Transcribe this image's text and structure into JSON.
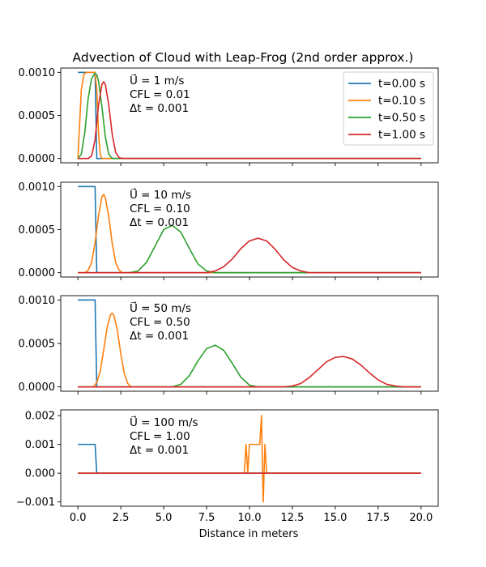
{
  "chart_data": {
    "type": "line",
    "title": "Advection of Cloud with Leap-Frog (2nd order approx.)",
    "xlabel": "Distance in meters",
    "xlim": [
      -1,
      21
    ],
    "x_ticks": [
      "0.0",
      "2.5",
      "5.0",
      "7.5",
      "10.0",
      "12.5",
      "15.0",
      "17.5",
      "20.0"
    ],
    "legend": {
      "position": "top-right",
      "entries": [
        {
          "label": "t=0.00 s",
          "color": "#1f77b4"
        },
        {
          "label": "t=0.10 s",
          "color": "#ff7f0e"
        },
        {
          "label": "t=0.50 s",
          "color": "#2ca02c"
        },
        {
          "label": "t=1.00 s",
          "color": "#d62728"
        }
      ]
    },
    "subplots": [
      {
        "annotation": [
          "U⃗ = 1 m/s",
          "CFL = 0.01",
          "Δt = 0.001"
        ],
        "ylim": [
          -5e-05,
          0.00105
        ],
        "y_ticks": [
          "0.0000",
          "0.0005",
          "0.0010"
        ],
        "series": [
          {
            "name": "t=0.00 s",
            "color": "#1f77b4",
            "x": [
              0,
              1,
              1.05,
              1.1,
              20
            ],
            "y": [
              0.001,
              0.001,
              0.0005,
              0,
              0
            ]
          },
          {
            "name": "t=0.10 s",
            "color": "#ff7f0e",
            "x": [
              0,
              0.1,
              0.2,
              0.35,
              0.5,
              1.0,
              1.1,
              1.2,
              1.3,
              1.4,
              20
            ],
            "y": [
              0,
              0.0004,
              0.0008,
              0.00098,
              0.001,
              0.001,
              0.0008,
              0.0003,
              5e-05,
              0,
              0
            ]
          },
          {
            "name": "t=0.50 s",
            "color": "#2ca02c",
            "x": [
              0,
              0.2,
              0.4,
              0.6,
              0.8,
              1.0,
              1.1,
              1.2,
              1.4,
              1.6,
              1.8,
              2.0,
              2.2,
              20
            ],
            "y": [
              0,
              5e-05,
              0.0003,
              0.0007,
              0.00093,
              0.00099,
              0.00097,
              0.0009,
              0.0006,
              0.00025,
              5e-05,
              0,
              0,
              0
            ]
          },
          {
            "name": "t=1.00 s",
            "color": "#d62728",
            "x": [
              0,
              0.6,
              0.8,
              1.0,
              1.2,
              1.4,
              1.5,
              1.6,
              1.8,
              2.0,
              2.2,
              2.4,
              2.6,
              20
            ],
            "y": [
              0,
              0,
              3e-05,
              0.00022,
              0.00062,
              0.00086,
              0.00089,
              0.00086,
              0.00062,
              0.00028,
              7e-05,
              1e-05,
              0,
              0
            ]
          }
        ]
      },
      {
        "annotation": [
          "U⃗ = 10 m/s",
          "CFL = 0.10",
          "Δt = 0.001"
        ],
        "ylim": [
          -5e-05,
          0.00105
        ],
        "y_ticks": [
          "0.0000",
          "0.0005",
          "0.0010"
        ],
        "series": [
          {
            "name": "t=0.00 s",
            "color": "#1f77b4",
            "x": [
              0,
              1,
              1.05,
              1.1,
              20
            ],
            "y": [
              0.001,
              0.001,
              0.0005,
              0,
              0
            ]
          },
          {
            "name": "t=0.10 s",
            "color": "#ff7f0e",
            "x": [
              0,
              0.4,
              0.6,
              0.8,
              1.0,
              1.2,
              1.4,
              1.5,
              1.6,
              1.8,
              2.0,
              2.2,
              2.4,
              2.6,
              20
            ],
            "y": [
              0,
              0,
              3e-05,
              0.00012,
              0.00035,
              0.00066,
              0.00088,
              0.00091,
              0.00087,
              0.00065,
              0.00034,
              0.00012,
              3e-05,
              0,
              0
            ]
          },
          {
            "name": "t=0.50 s",
            "color": "#2ca02c",
            "x": [
              0,
              3.0,
              3.5,
              4.0,
              4.5,
              5.0,
              5.5,
              6.0,
              6.5,
              7.0,
              7.5,
              8.0,
              20
            ],
            "y": [
              0,
              0,
              2e-05,
              0.00012,
              0.00031,
              0.0005,
              0.00055,
              0.00047,
              0.00028,
              0.0001,
              2e-05,
              0,
              0
            ]
          },
          {
            "name": "t=1.00 s",
            "color": "#d62728",
            "x": [
              0,
              7.5,
              8.0,
              8.5,
              9.0,
              9.5,
              10.0,
              10.5,
              11.0,
              11.5,
              12.0,
              12.5,
              13.0,
              13.5,
              20
            ],
            "y": [
              0,
              0,
              2e-05,
              7e-05,
              0.00016,
              0.00028,
              0.00037,
              0.0004,
              0.00037,
              0.00027,
              0.00015,
              6e-05,
              2e-05,
              0,
              0
            ]
          }
        ]
      },
      {
        "annotation": [
          "U⃗ = 50 m/s",
          "CFL = 0.50",
          "Δt = 0.001"
        ],
        "ylim": [
          -5e-05,
          0.00105
        ],
        "y_ticks": [
          "0.0000",
          "0.0005",
          "0.0010"
        ],
        "series": [
          {
            "name": "t=0.00 s",
            "color": "#1f77b4",
            "x": [
              0,
              1,
              1.05,
              1.1,
              20
            ],
            "y": [
              0.001,
              0.001,
              0.0005,
              0,
              0
            ]
          },
          {
            "name": "t=0.10 s",
            "color": "#ff7f0e",
            "x": [
              0,
              0.9,
              1.1,
              1.3,
              1.5,
              1.7,
              1.9,
              2.0,
              2.1,
              2.3,
              2.5,
              2.7,
              2.9,
              3.1,
              20
            ],
            "y": [
              0,
              0,
              5e-05,
              0.00018,
              0.00042,
              0.00068,
              0.00083,
              0.00085,
              0.00082,
              0.00065,
              0.00038,
              0.00016,
              4e-05,
              0,
              0
            ]
          },
          {
            "name": "t=0.50 s",
            "color": "#2ca02c",
            "x": [
              0,
              5.5,
              6.0,
              6.5,
              7.0,
              7.5,
              8.0,
              8.5,
              9.0,
              9.5,
              10.0,
              10.5,
              20
            ],
            "y": [
              0,
              0,
              3e-05,
              0.00013,
              0.0003,
              0.00044,
              0.00048,
              0.00042,
              0.00027,
              0.00011,
              2e-05,
              0,
              0
            ]
          },
          {
            "name": "t=1.00 s",
            "color": "#d62728",
            "x": [
              0,
              12.0,
              12.5,
              13.0,
              13.5,
              14.0,
              14.5,
              15.0,
              15.5,
              16.0,
              16.5,
              17.0,
              17.5,
              18.0,
              18.5,
              19.0,
              20
            ],
            "y": [
              0,
              0,
              1e-05,
              4e-05,
              0.00011,
              0.0002,
              0.00029,
              0.00034,
              0.00035,
              0.00032,
              0.00025,
              0.00016,
              8e-05,
              3e-05,
              1e-05,
              0,
              0
            ]
          }
        ]
      },
      {
        "annotation": [
          "U⃗ = 100 m/s",
          "CFL = 1.00",
          "Δt = 0.001"
        ],
        "ylim": [
          -0.00115,
          0.0022
        ],
        "y_ticks": [
          "−0.001",
          "0.000",
          "0.001",
          "0.002"
        ],
        "y_tick_values": [
          -0.001,
          0,
          0.001,
          0.002
        ],
        "series": [
          {
            "name": "t=0.00 s",
            "color": "#1f77b4",
            "x": [
              0,
              1,
              1.05,
              1.1,
              20
            ],
            "y": [
              0.001,
              0.001,
              0.0005,
              0,
              0
            ]
          },
          {
            "name": "t=0.10 s",
            "color": "#ff7f0e",
            "x": [
              0,
              9.7,
              9.8,
              9.9,
              10.0,
              10.5,
              10.6,
              10.7,
              10.8,
              10.9,
              11.0,
              11.1,
              20
            ],
            "y": [
              0,
              0,
              0.001,
              0,
              0.001,
              0.001,
              0.001,
              0.002,
              -0.001,
              0.001,
              0,
              0,
              0
            ]
          },
          {
            "name": "t=0.50 s",
            "color": "#2ca02c",
            "x": [
              0,
              20
            ],
            "y": [
              0,
              0
            ]
          },
          {
            "name": "t=1.00 s",
            "color": "#d62728",
            "x": [
              0,
              20
            ],
            "y": [
              0,
              0
            ]
          }
        ]
      }
    ]
  }
}
